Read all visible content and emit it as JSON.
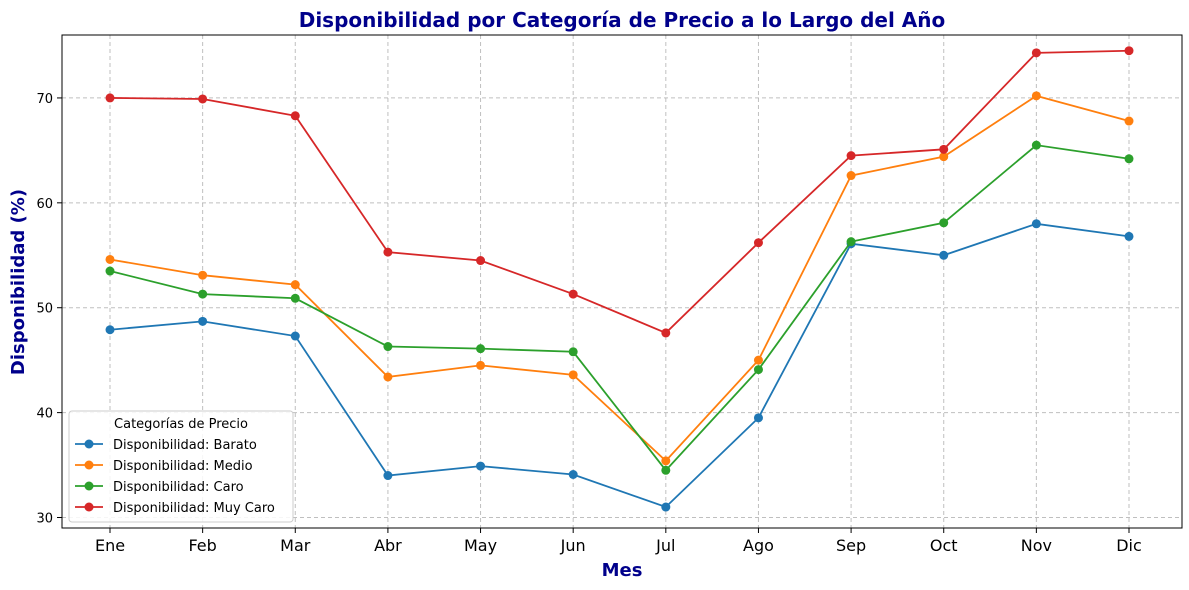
{
  "chart_data": {
    "type": "line",
    "title": "Disponibilidad por Categoría de Precio a lo Largo del Año",
    "xlabel": "Mes",
    "ylabel": "Disponibilidad (%)",
    "categories": [
      "Ene",
      "Feb",
      "Mar",
      "Abr",
      "May",
      "Jun",
      "Jul",
      "Ago",
      "Sep",
      "Oct",
      "Nov",
      "Dic"
    ],
    "ylim": [
      29,
      76
    ],
    "yticks": [
      30,
      40,
      50,
      60,
      70
    ],
    "grid": true,
    "legend": {
      "title": "Categorías de Precio",
      "position": "lower-left"
    },
    "series": [
      {
        "name": "Disponibilidad: Barato",
        "color": "#1f77b4",
        "values": [
          47.9,
          48.7,
          47.3,
          34.0,
          34.9,
          34.1,
          31.0,
          39.5,
          56.1,
          55.0,
          58.0,
          56.8
        ]
      },
      {
        "name": "Disponibilidad: Medio",
        "color": "#ff7f0e",
        "values": [
          54.6,
          53.1,
          52.2,
          43.4,
          44.5,
          43.6,
          35.4,
          45.0,
          62.6,
          64.4,
          70.2,
          67.8
        ]
      },
      {
        "name": "Disponibilidad: Caro",
        "color": "#2ca02c",
        "values": [
          53.5,
          51.3,
          50.9,
          46.3,
          46.1,
          45.8,
          34.5,
          44.1,
          56.3,
          58.1,
          65.5,
          64.2
        ]
      },
      {
        "name": "Disponibilidad: Muy Caro",
        "color": "#d62728",
        "values": [
          70.0,
          69.9,
          68.3,
          55.3,
          54.5,
          51.3,
          47.6,
          56.2,
          64.5,
          65.1,
          74.3,
          74.5
        ]
      }
    ]
  }
}
